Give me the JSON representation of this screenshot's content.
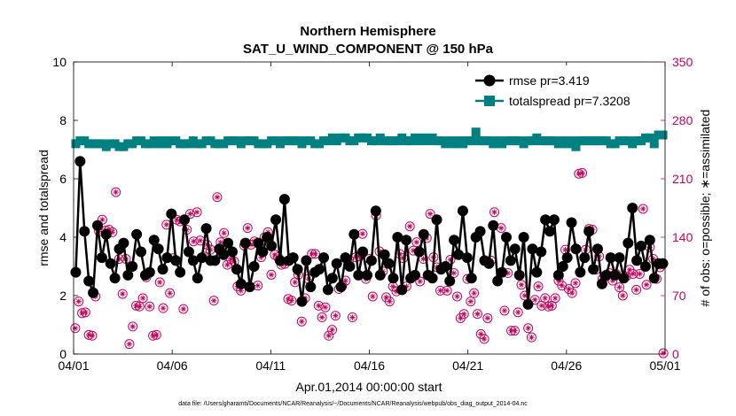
{
  "colors": {
    "rmse": "#000000",
    "spread": "#008080",
    "obs": "#c8005a",
    "axis": "#000000"
  },
  "chart_data": {
    "type": "line",
    "title": "Northern Hemisphere",
    "subtitle": "SAT_U_WIND_COMPONENT @ 150 hPa",
    "xlabel": "Apr.01,2014 00:00:00 start",
    "ylabel_left": "rmse and totalspread",
    "ylabel_right": "# of obs: o=possible; ∗=assimilated",
    "xlim": [
      0,
      30
    ],
    "ylim_left": [
      0,
      10
    ],
    "ylim_right": [
      0,
      350
    ],
    "x_ticks": [
      0,
      5,
      10,
      15,
      20,
      25,
      30
    ],
    "x_tick_labels": [
      "04/01",
      "04/06",
      "04/11",
      "04/16",
      "04/21",
      "04/26",
      "05/01"
    ],
    "y_ticks_left": [
      "0",
      "2",
      "4",
      "6",
      "8",
      "10"
    ],
    "y_ticks_right": [
      "0",
      "70",
      "140",
      "210",
      "280",
      "350"
    ],
    "footnote": "data file: /Users/gharamti/Documents/NCAR/Reanalysis/~/Documents/NCAR/Reanalysis/webpub/obs_diag_output_2014-04.nc",
    "legend": [
      {
        "label": "rmse pr=3.419",
        "series": "rmse"
      },
      {
        "label": "totalspread pr=7.3208",
        "series": "spread"
      }
    ],
    "series": [
      {
        "name": "rmse",
        "axis": "left",
        "values": [
          2.8,
          6.6,
          4.2,
          2.5,
          2.1,
          4.4,
          3.3,
          4.1,
          3.1,
          2.6,
          3.6,
          3.8,
          2.7,
          3.0,
          4.1,
          3.5,
          2.7,
          2.8,
          3.9,
          3.6,
          2.9,
          3.3,
          4.8,
          3.2,
          2.8,
          4.6,
          3.5,
          3.2,
          2.6,
          3.3,
          4.3,
          3.2,
          3.2,
          3.6,
          3.4,
          3.8,
          3.5,
          2.9,
          2.4,
          3.8,
          2.3,
          3.0,
          3.8,
          3.5,
          4.0,
          3.7,
          4.6,
          3.2,
          5.3,
          3.2,
          3.3,
          2.9,
          1.8,
          3.2,
          2.3,
          2.8,
          2.9,
          3.3,
          2.2,
          2.6,
          3.1,
          2.3,
          3.3,
          3.0,
          4.1,
          2.7,
          3.5,
          2.7,
          3.2,
          4.9,
          2.7,
          3.4,
          3.1,
          2.6,
          4.0,
          2.2,
          3.9,
          2.6,
          2.7,
          3.5,
          4.1,
          2.7,
          2.6,
          4.6,
          2.9,
          3.0,
          2.5,
          3.9,
          3.4,
          4.9,
          3.3,
          2.6,
          4.0,
          4.2,
          3.2,
          3.1,
          4.4,
          2.5,
          2.8,
          4.0,
          3.2,
          3.6,
          2.7,
          4.0,
          1.7,
          3.6,
          2.8,
          3.5,
          4.6,
          4.2,
          4.6,
          2.7,
          3.0,
          3.3,
          4.5,
          3.6,
          2.8,
          3.3,
          4.2,
          2.9,
          3.6,
          2.4,
          2.7,
          3.3,
          2.7,
          3.3,
          2.6,
          3.8,
          5.0,
          3.2,
          3.7,
          3.0,
          3.9,
          2.6,
          3.1,
          3.1
        ]
      },
      {
        "name": "totalspread",
        "axis": "left",
        "values": [
          7.2,
          7.3,
          7.3,
          7.2,
          7.2,
          7.2,
          7.2,
          7.1,
          7.2,
          7.2,
          7.1,
          7.1,
          7.2,
          7.2,
          7.3,
          7.3,
          7.2,
          7.2,
          7.3,
          7.2,
          7.3,
          7.2,
          7.3,
          7.3,
          7.2,
          7.2,
          7.2,
          7.3,
          7.2,
          7.2,
          7.3,
          7.3,
          7.2,
          7.2,
          7.2,
          7.3,
          7.3,
          7.3,
          7.2,
          7.3,
          7.3,
          7.3,
          7.2,
          7.2,
          7.2,
          7.3,
          7.3,
          7.2,
          7.3,
          7.3,
          7.3,
          7.3,
          7.2,
          7.3,
          7.3,
          7.2,
          7.2,
          7.3,
          7.3,
          7.4,
          7.3,
          7.4,
          7.4,
          7.3,
          7.3,
          7.4,
          7.4,
          7.4,
          7.3,
          7.3,
          7.4,
          7.3,
          7.3,
          7.3,
          7.3,
          7.4,
          7.3,
          7.3,
          7.4,
          7.3,
          7.4,
          7.3,
          7.4,
          7.3,
          7.3,
          7.2,
          7.3,
          7.2,
          7.3,
          7.2,
          7.3,
          7.3,
          7.6,
          7.3,
          7.3,
          7.3,
          7.2,
          7.3,
          7.2,
          7.3,
          7.3,
          7.3,
          7.3,
          7.2,
          7.3,
          7.3,
          7.4,
          7.3,
          7.3,
          7.3,
          7.3,
          7.2,
          7.3,
          7.2,
          7.3,
          7.1,
          7.3,
          7.3,
          7.3,
          7.3,
          7.3,
          7.3,
          7.3,
          7.2,
          7.2,
          7.3,
          7.3,
          7.3,
          7.2,
          7.3,
          7.3,
          7.4,
          7.4,
          7.2,
          7.5,
          7.5
        ]
      },
      {
        "name": "obs_possible",
        "axis": "right",
        "values": [
          31,
          63,
          49,
          50,
          23,
          22,
          69,
          147,
          161,
          148,
          149,
          146,
          194,
          114,
          72,
          114,
          12,
          33,
          58,
          57,
          67,
          92,
          57,
          22,
          23,
          86,
          55,
          155,
          73,
          115,
          161,
          159,
          54,
          149,
          168,
          135,
          170,
          136,
          117,
          131,
          125,
          64,
          188,
          134,
          145,
          107,
          114,
          111,
          81,
          76,
          130,
          151,
          131,
          135,
          82,
          116,
          140,
          146,
          95,
          119,
          116,
          107,
          108,
          66,
          64,
          86,
          95,
          39,
          67,
          90,
          120,
          120,
          58,
          44,
          56,
          22,
          29,
          46,
          78,
          82,
          88,
          113,
          44,
          116,
          117,
          144,
          90,
          114,
          69,
          166,
          123,
          99,
          68,
          63,
          81,
          75,
          120,
          115,
          81,
          153,
          124,
          134,
          87,
          114,
          139,
          168,
          116,
          104,
          76,
          104,
          76,
          113,
          97,
          69,
          43,
          48,
          90,
          63,
          73,
          48,
          24,
          18,
          43,
          112,
          170,
          88,
          151,
          52,
          97,
          28,
          28,
          50,
          83,
          70,
          31,
          20,
          65,
          81,
          58,
          67,
          57,
          58,
          67,
          88,
          82,
          125,
          78,
          73,
          85,
          216,
          217,
          125,
          150,
          149,
          101,
          117,
          90,
          93,
          97,
          88,
          96,
          80,
          70,
          93,
          101,
          96,
          77,
          96,
          174,
          83,
          128,
          114,
          90,
          104,
          1
        ]
      },
      {
        "name": "obs_assimilated",
        "axis": "right",
        "values": [
          31,
          63,
          49,
          50,
          23,
          22,
          69,
          147,
          161,
          148,
          149,
          146,
          194,
          114,
          72,
          114,
          12,
          33,
          58,
          57,
          67,
          92,
          57,
          22,
          23,
          86,
          55,
          155,
          73,
          115,
          161,
          159,
          54,
          149,
          168,
          135,
          170,
          136,
          117,
          131,
          125,
          64,
          188,
          134,
          145,
          107,
          114,
          111,
          81,
          76,
          130,
          151,
          131,
          135,
          82,
          116,
          140,
          146,
          95,
          119,
          116,
          107,
          108,
          66,
          64,
          86,
          95,
          39,
          67,
          90,
          120,
          120,
          58,
          44,
          56,
          22,
          29,
          46,
          78,
          82,
          88,
          113,
          44,
          116,
          117,
          144,
          90,
          114,
          69,
          166,
          123,
          99,
          68,
          63,
          81,
          75,
          120,
          115,
          81,
          153,
          124,
          134,
          87,
          114,
          139,
          168,
          116,
          104,
          76,
          104,
          76,
          113,
          97,
          69,
          43,
          48,
          90,
          63,
          73,
          48,
          24,
          18,
          43,
          112,
          170,
          88,
          151,
          52,
          97,
          28,
          28,
          50,
          83,
          70,
          31,
          20,
          65,
          81,
          58,
          67,
          57,
          58,
          67,
          88,
          82,
          125,
          78,
          73,
          85,
          216,
          217,
          125,
          150,
          149,
          101,
          117,
          90,
          93,
          97,
          88,
          96,
          80,
          70,
          93,
          101,
          96,
          77,
          96,
          174,
          83,
          128,
          114,
          90,
          104,
          1
        ]
      }
    ]
  }
}
